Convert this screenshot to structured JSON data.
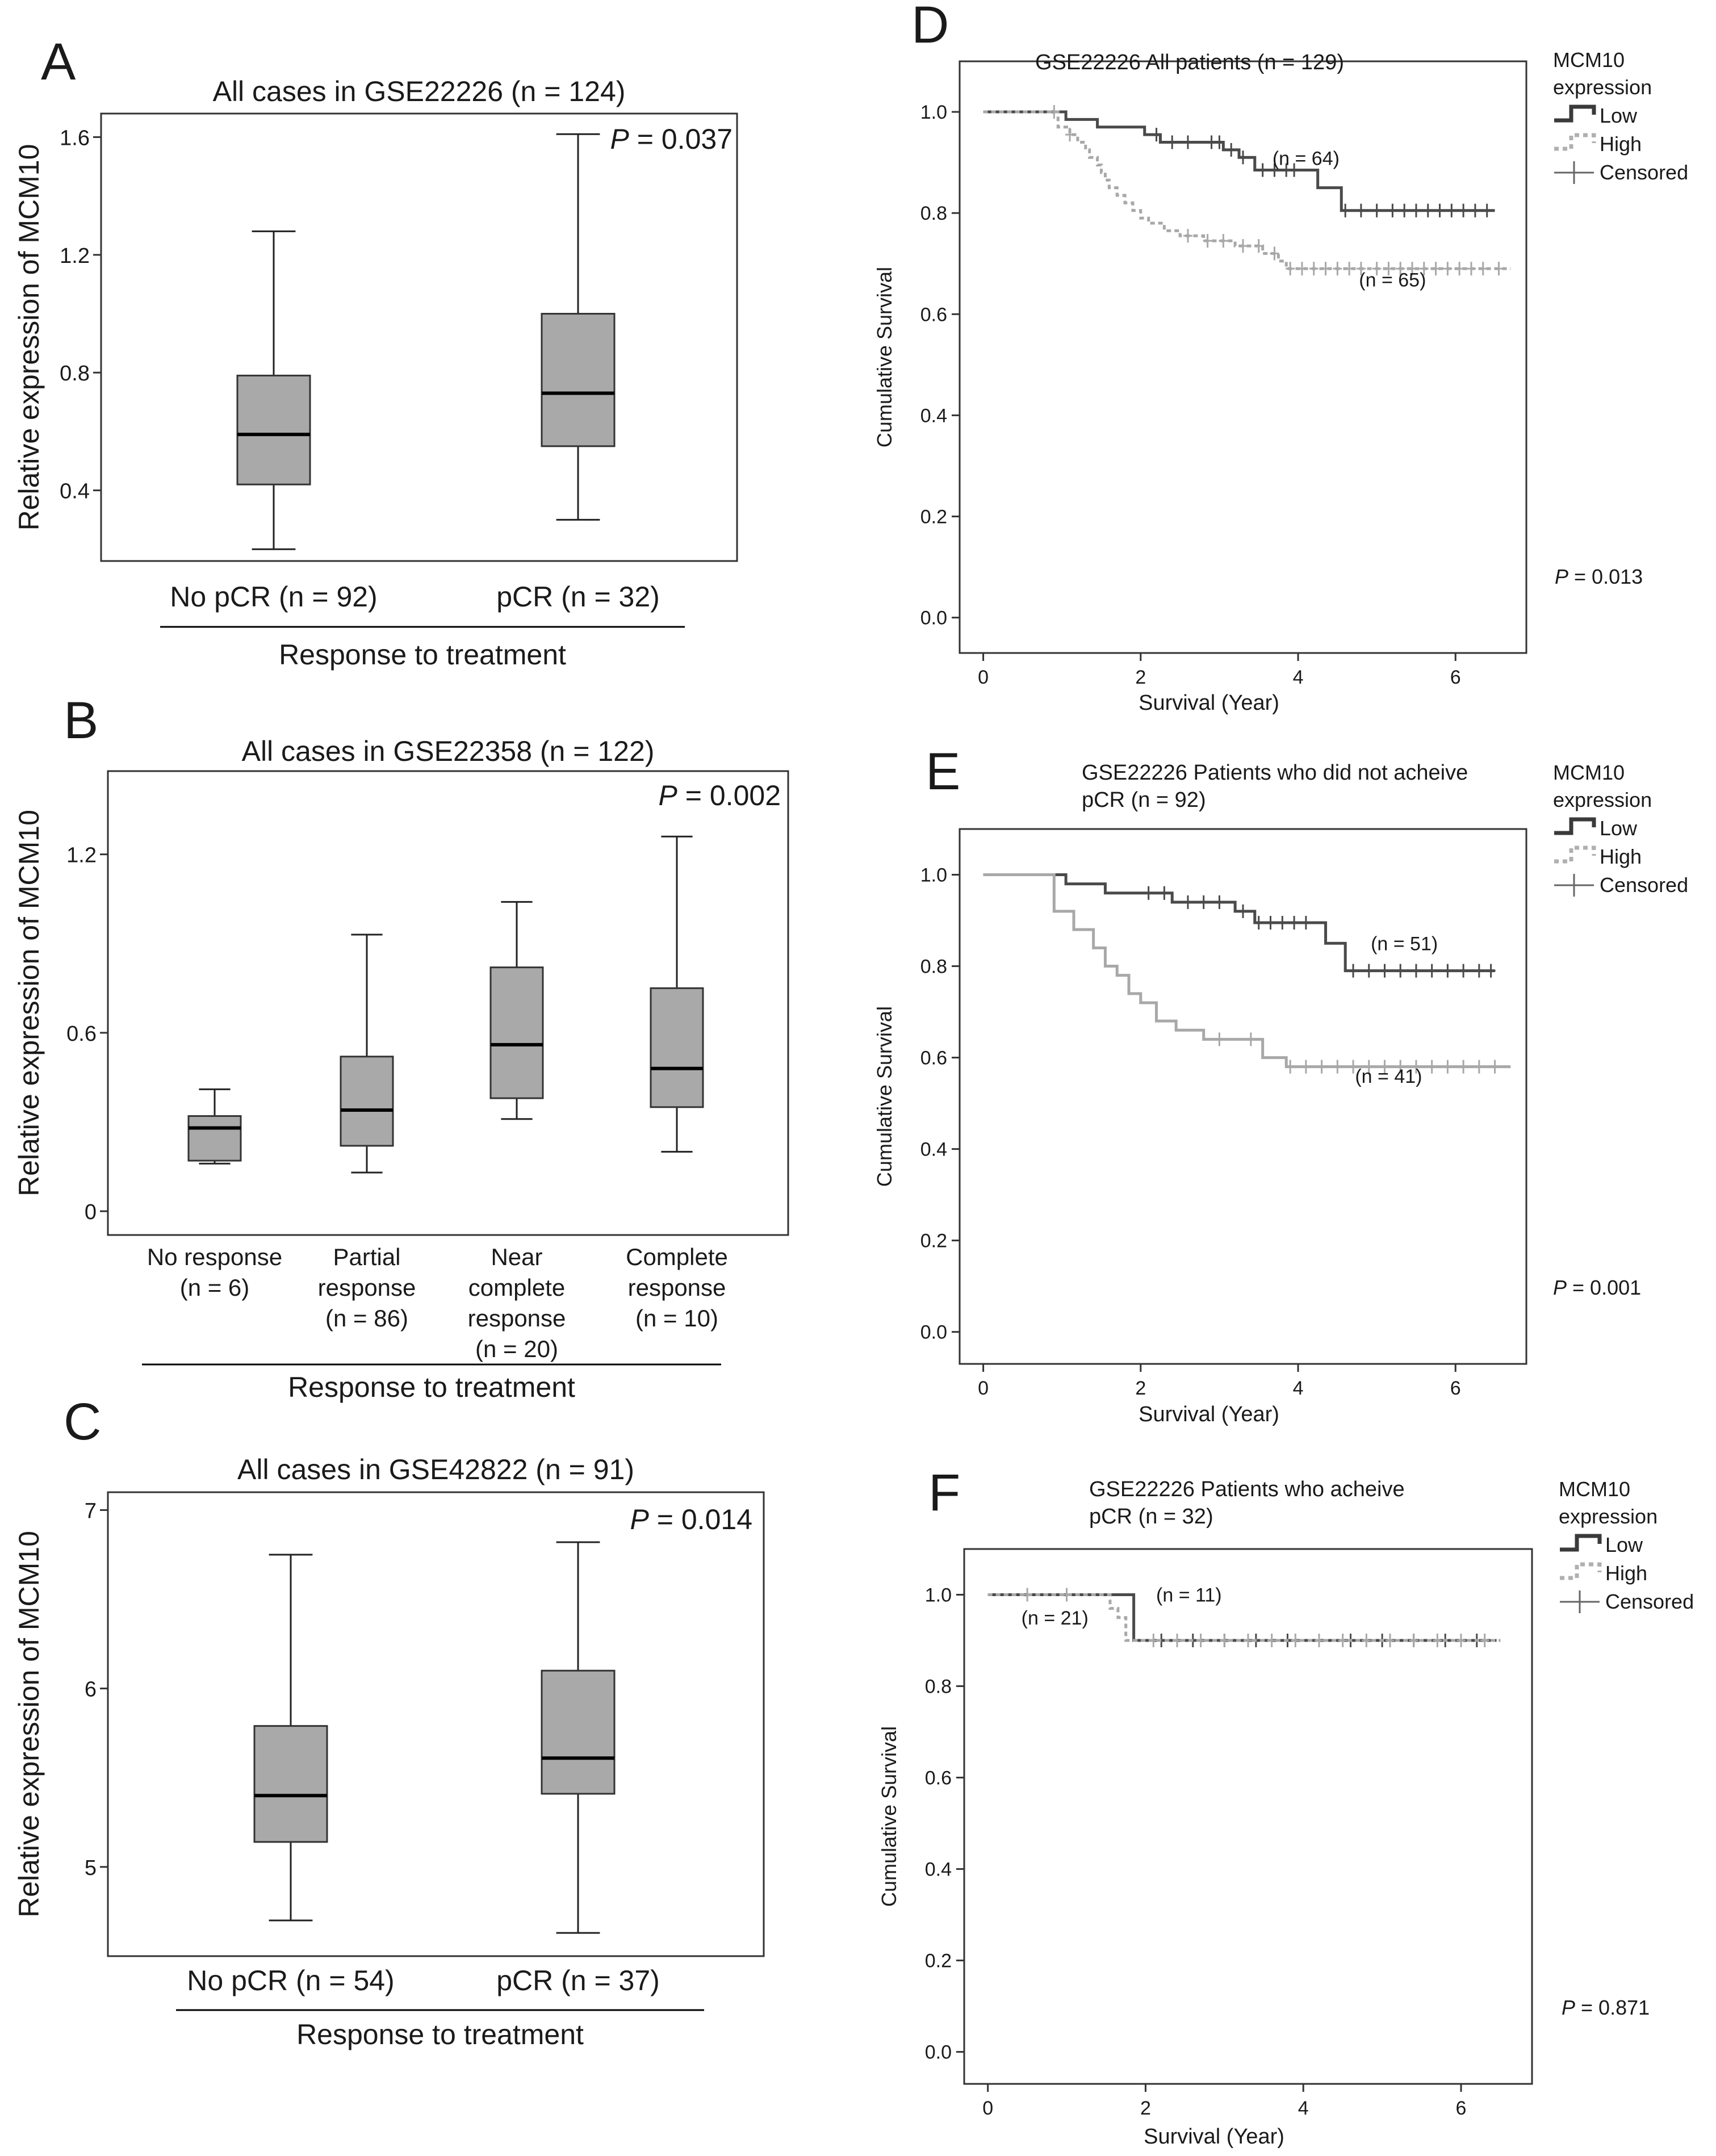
{
  "figure": {
    "panels": [
      "A",
      "B",
      "C",
      "D",
      "E",
      "F"
    ]
  },
  "chart_data": [
    {
      "id": "A",
      "type": "box",
      "title": "All cases in GSE22226 (n = 124)",
      "ylabel": "Relative expression of MCM10",
      "xlabel": "Response to treatment",
      "p_prefix": "P",
      "p_value": "= 0.037",
      "ylim": [
        0.16,
        1.68
      ],
      "yticks": [
        0.4,
        0.8,
        1.2,
        1.6
      ],
      "ytick_labels": [
        "0.4",
        "0.8",
        "1.2",
        "1.6"
      ],
      "categories": [
        [
          "No pCR (n = 92)"
        ],
        [
          "pCR (n = 32)"
        ]
      ],
      "boxes": [
        {
          "min": 0.2,
          "q1": 0.42,
          "median": 0.59,
          "q3": 0.79,
          "max": 1.28
        },
        {
          "min": 0.3,
          "q1": 0.55,
          "median": 0.73,
          "q3": 1.0,
          "max": 1.61
        }
      ]
    },
    {
      "id": "B",
      "type": "box",
      "title": "All cases in GSE22358 (n = 122)",
      "ylabel": "Relative expression of MCM10",
      "xlabel": "Response to treatment",
      "p_prefix": "P",
      "p_value": "= 0.002",
      "ylim": [
        -0.08,
        1.48
      ],
      "yticks": [
        0,
        0.6,
        1.2
      ],
      "ytick_labels": [
        "0",
        "0.6",
        "1.2"
      ],
      "categories": [
        [
          "No response",
          "(n = 6)"
        ],
        [
          "Partial",
          "response",
          "(n = 86)"
        ],
        [
          "Near",
          "complete",
          "response",
          "(n = 20)"
        ],
        [
          "Complete",
          "response",
          "(n = 10)"
        ]
      ],
      "boxes": [
        {
          "min": 0.16,
          "q1": 0.17,
          "median": 0.28,
          "q3": 0.32,
          "max": 0.41
        },
        {
          "min": 0.13,
          "q1": 0.22,
          "median": 0.34,
          "q3": 0.52,
          "max": 0.93
        },
        {
          "min": 0.31,
          "q1": 0.38,
          "median": 0.56,
          "q3": 0.82,
          "max": 1.04
        },
        {
          "min": 0.2,
          "q1": 0.35,
          "median": 0.48,
          "q3": 0.75,
          "max": 1.26
        }
      ]
    },
    {
      "id": "C",
      "type": "box",
      "title": "All cases in GSE42822 (n = 91)",
      "ylabel": "Relative expression of MCM10",
      "xlabel": "Response to treatment",
      "p_prefix": "P",
      "p_value": "= 0.014",
      "ylim": [
        4.5,
        7.1
      ],
      "yticks": [
        5,
        6,
        7
      ],
      "ytick_labels": [
        "5",
        "6",
        "7"
      ],
      "categories": [
        [
          "No pCR (n = 54)"
        ],
        [
          "pCR (n = 37)"
        ]
      ],
      "boxes": [
        {
          "min": 4.7,
          "q1": 5.14,
          "median": 5.4,
          "q3": 5.79,
          "max": 6.75
        },
        {
          "min": 4.63,
          "q1": 5.41,
          "median": 5.61,
          "q3": 6.1,
          "max": 6.82
        }
      ]
    },
    {
      "id": "D",
      "type": "line",
      "title": [
        "GSE22226 All patients (n = 129)"
      ],
      "xlabel": "Survival (Year)",
      "ylabel": "Cumulative Survival",
      "xlim": [
        -0.3,
        6.9
      ],
      "ylim": [
        -0.07,
        1.1
      ],
      "xticks": [
        0,
        2,
        4,
        6
      ],
      "xtick_labels": [
        "0",
        "2",
        "4",
        "6"
      ],
      "yticks": [
        0,
        0.2,
        0.4,
        0.6,
        0.8,
        1.0
      ],
      "ytick_labels": [
        "0.0",
        "0.2",
        "0.4",
        "0.6",
        "0.8",
        "1.0"
      ],
      "legend": {
        "title": [
          "MCM10",
          "expression"
        ],
        "entries": [
          "Low",
          "High",
          "Censored"
        ],
        "position": "right"
      },
      "p_prefix": "P",
      "p_value": "= 0.013",
      "annotations": [
        {
          "text": "(n = 64)",
          "x": 4.1,
          "y": 0.895
        },
        {
          "text": "(n = 65)",
          "x": 5.2,
          "y": 0.655
        }
      ],
      "series": [
        {
          "name": "Low",
          "x": [
            0,
            0.95,
            1.05,
            1.25,
            1.45,
            1.85,
            2.05,
            2.25,
            2.65,
            3.05,
            3.25,
            3.45,
            4.05,
            4.25,
            4.55,
            6.5
          ],
          "y": [
            1.0,
            1.0,
            0.985,
            0.985,
            0.97,
            0.97,
            0.955,
            0.94,
            0.94,
            0.925,
            0.91,
            0.885,
            0.885,
            0.85,
            0.805,
            0.805
          ],
          "censors_x": [
            2.2,
            2.4,
            2.6,
            2.9,
            3.0,
            3.15,
            3.3,
            3.55,
            3.7,
            3.85,
            3.95,
            4.6,
            4.8,
            5.0,
            5.2,
            5.35,
            5.5,
            5.65,
            5.8,
            5.95,
            6.1,
            6.25,
            6.4
          ]
        },
        {
          "name": "High",
          "x": [
            0,
            0.8,
            0.95,
            1.1,
            1.2,
            1.3,
            1.35,
            1.45,
            1.5,
            1.55,
            1.6,
            1.7,
            1.8,
            1.9,
            2.0,
            2.1,
            2.3,
            2.5,
            2.8,
            3.2,
            3.55,
            3.75,
            3.85,
            6.7
          ],
          "y": [
            1.0,
            1.0,
            0.97,
            0.955,
            0.94,
            0.925,
            0.91,
            0.895,
            0.88,
            0.865,
            0.85,
            0.835,
            0.82,
            0.805,
            0.79,
            0.78,
            0.765,
            0.755,
            0.745,
            0.735,
            0.72,
            0.705,
            0.69,
            0.69
          ],
          "censors_x": [
            0.9,
            1.1,
            2.6,
            2.85,
            3.05,
            3.3,
            3.5,
            3.7,
            3.9,
            4.05,
            4.2,
            4.35,
            4.5,
            4.65,
            4.8,
            5.0,
            5.15,
            5.3,
            5.45,
            5.6,
            5.75,
            5.9,
            6.05,
            6.2,
            6.35,
            6.55
          ]
        }
      ]
    },
    {
      "id": "E",
      "type": "line",
      "title": [
        "GSE22226 Patients who did not acheive",
        "pCR (n = 92)"
      ],
      "xlabel": "Survival (Year)",
      "ylabel": "Cumulative Survival",
      "xlim": [
        -0.3,
        6.9
      ],
      "ylim": [
        -0.07,
        1.1
      ],
      "xticks": [
        0,
        2,
        4,
        6
      ],
      "xtick_labels": [
        "0",
        "2",
        "4",
        "6"
      ],
      "yticks": [
        0,
        0.2,
        0.4,
        0.6,
        0.8,
        1.0
      ],
      "ytick_labels": [
        "0.0",
        "0.2",
        "0.4",
        "0.6",
        "0.8",
        "1.0"
      ],
      "legend": {
        "title": [
          "MCM10",
          "expression"
        ],
        "entries": [
          "Low",
          "High",
          "Censored"
        ],
        "position": "right"
      },
      "p_prefix": "P",
      "p_value": "= 0.001",
      "annotations": [
        {
          "text": "(n = 51)",
          "x": 5.35,
          "y": 0.835
        },
        {
          "text": "(n = 41)",
          "x": 5.15,
          "y": 0.545
        }
      ],
      "series": [
        {
          "name": "Low",
          "x": [
            0,
            0.85,
            1.05,
            1.25,
            1.55,
            2.05,
            2.4,
            3.05,
            3.2,
            3.45,
            4.05,
            4.35,
            4.6,
            6.5
          ],
          "y": [
            1.0,
            1.0,
            0.98,
            0.98,
            0.96,
            0.96,
            0.94,
            0.94,
            0.92,
            0.895,
            0.895,
            0.85,
            0.79,
            0.79
          ],
          "censors_x": [
            2.1,
            2.3,
            2.6,
            2.8,
            3.0,
            3.3,
            3.5,
            3.65,
            3.8,
            3.95,
            4.1,
            4.7,
            4.9,
            5.1,
            5.3,
            5.5,
            5.7,
            5.9,
            6.1,
            6.3,
            6.45
          ]
        },
        {
          "name": "High",
          "x": [
            0,
            0.8,
            0.9,
            1.15,
            1.4,
            1.55,
            1.7,
            1.85,
            2.0,
            2.2,
            2.45,
            2.8,
            3.2,
            3.55,
            3.85,
            6.7
          ],
          "y": [
            1.0,
            1.0,
            0.92,
            0.88,
            0.84,
            0.8,
            0.78,
            0.74,
            0.72,
            0.68,
            0.66,
            0.64,
            0.64,
            0.6,
            0.58,
            0.58
          ],
          "censors_x": [
            3.0,
            3.4,
            3.9,
            4.1,
            4.3,
            4.5,
            4.7,
            4.9,
            5.1,
            5.3,
            5.5,
            5.7,
            5.9,
            6.1,
            6.3,
            6.5
          ]
        }
      ]
    },
    {
      "id": "F",
      "type": "line",
      "title": [
        "GSE22226 Patients who acheive",
        "pCR (n = 32)"
      ],
      "xlabel": "Survival (Year)",
      "ylabel": "Cumulative Survival",
      "xlim": [
        -0.3,
        6.9
      ],
      "ylim": [
        -0.07,
        1.1
      ],
      "xticks": [
        0,
        2,
        4,
        6
      ],
      "xtick_labels": [
        "0",
        "2",
        "4",
        "6"
      ],
      "yticks": [
        0,
        0.2,
        0.4,
        0.6,
        0.8,
        1.0
      ],
      "ytick_labels": [
        "0.0",
        "0.2",
        "0.4",
        "0.6",
        "0.8",
        "1.0"
      ],
      "legend": {
        "title": [
          "MCM10",
          "expression"
        ],
        "entries": [
          "Low",
          "High",
          "Censored"
        ],
        "position": "right"
      },
      "p_prefix": "P",
      "p_value": "= 0.871",
      "annotations": [
        {
          "text": "(n = 11)",
          "x": 2.55,
          "y": 0.985
        },
        {
          "text": "(n = 21)",
          "x": 0.85,
          "y": 0.935
        }
      ],
      "series": [
        {
          "name": "Low",
          "x": [
            0,
            1.85,
            1.85,
            6.45
          ],
          "y": [
            1.0,
            1.0,
            0.9,
            0.9
          ],
          "censors_x": [
            2.2,
            2.6,
            3.0,
            3.4,
            3.8,
            4.2,
            4.6,
            5.0,
            5.4,
            5.8,
            6.2
          ]
        },
        {
          "name": "High",
          "x": [
            0,
            1.45,
            1.55,
            1.65,
            1.75,
            6.5
          ],
          "y": [
            1.0,
            1.0,
            0.97,
            0.95,
            0.9,
            0.9
          ],
          "censors_x": [
            0.5,
            1.0,
            2.1,
            2.4,
            2.7,
            3.0,
            3.3,
            3.6,
            3.9,
            4.2,
            4.5,
            4.8,
            5.1,
            5.4,
            5.7,
            6.0,
            6.3
          ]
        }
      ]
    }
  ]
}
